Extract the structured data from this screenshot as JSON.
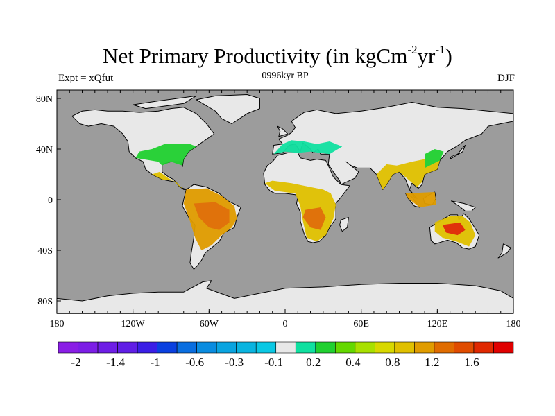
{
  "title": {
    "main": "Net Primary Productivity (in kgCm",
    "sup1": "-2",
    "mid": "yr",
    "sup2": "-1",
    "end": ")"
  },
  "left_label": "Expt = xQfut",
  "center_label": "0996kyr BP",
  "right_label": "DJF",
  "lat_ticks": [
    "80N",
    "40N",
    "0",
    "40S",
    "80S"
  ],
  "lon_ticks": [
    "180",
    "120W",
    "60W",
    "0",
    "60E",
    "120E",
    "180"
  ],
  "colors": {
    "ocean": "#9c9c9c",
    "land_no_data": "#e8e8e8"
  },
  "colorbar": {
    "colors": [
      "#8a1ee6",
      "#7c1ee6",
      "#6e1ee6",
      "#601ee6",
      "#3a1ee6",
      "#0a40e0",
      "#0a6ee0",
      "#0a8ce0",
      "#0aa4e0",
      "#0ab4e0",
      "#0ac8e4",
      "#e8e8e8",
      "#10e0a0",
      "#20d030",
      "#64d800",
      "#a8e000",
      "#d8d800",
      "#e0c000",
      "#e09c00",
      "#e06c00",
      "#e04c00",
      "#e02800",
      "#e00000"
    ],
    "labels": [
      "-2",
      "-1.4",
      "-1",
      "-0.6",
      "-0.3",
      "-0.1",
      "0.2",
      "0.4",
      "0.8",
      "1.2",
      "1.6"
    ]
  }
}
